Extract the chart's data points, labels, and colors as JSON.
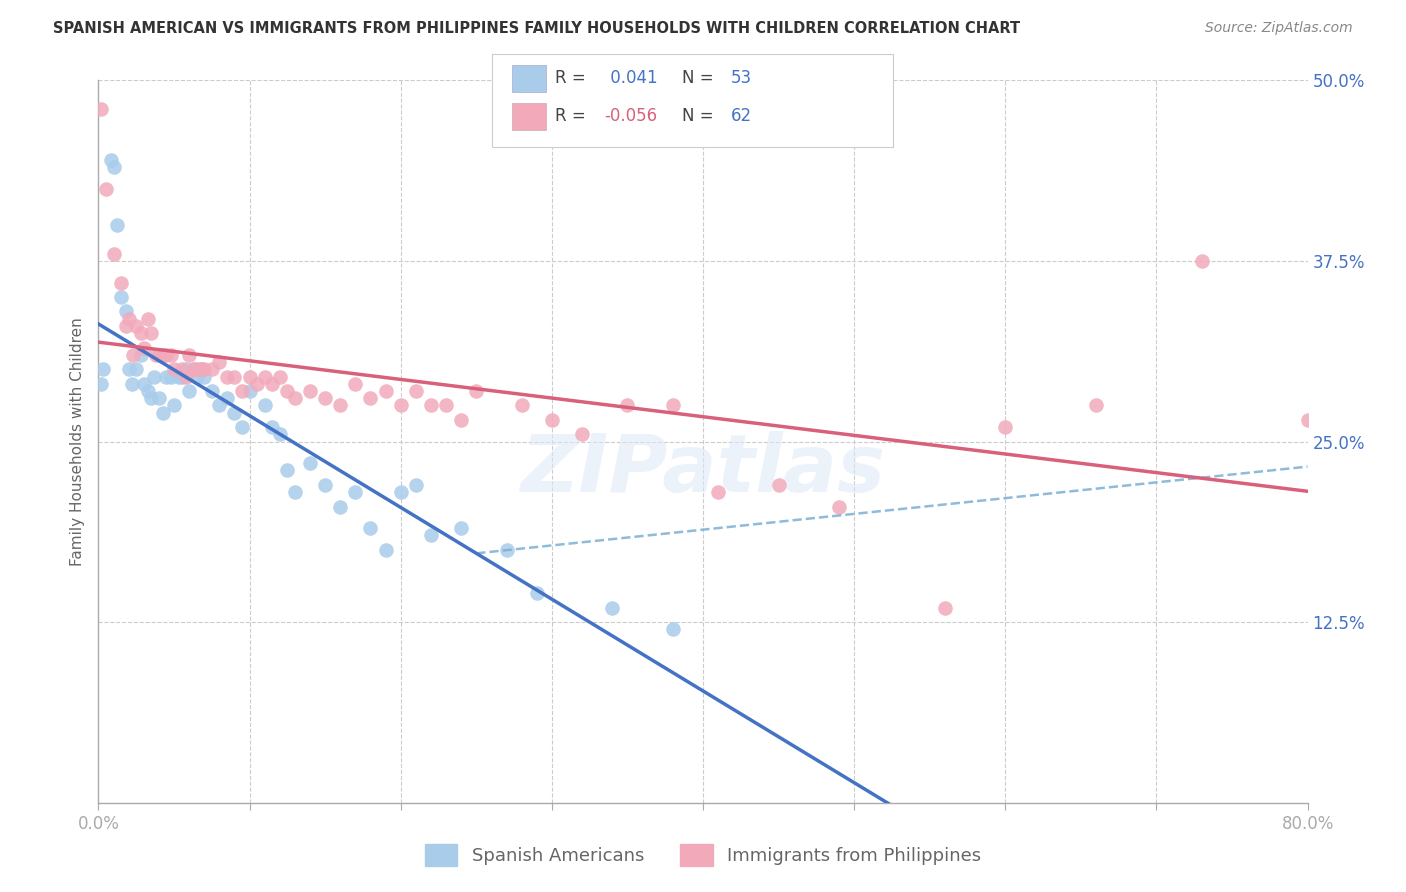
{
  "title": "SPANISH AMERICAN VS IMMIGRANTS FROM PHILIPPINES FAMILY HOUSEHOLDS WITH CHILDREN CORRELATION CHART",
  "source": "Source: ZipAtlas.com",
  "ylabel": "Family Households with Children",
  "xmin": 0.0,
  "xmax": 0.8,
  "ymin": 0.0,
  "ymax": 0.5,
  "blue_color": "#A8CCEA",
  "pink_color": "#F2AABB",
  "blue_line_color": "#4472C4",
  "pink_line_color": "#D9607A",
  "blue_r": 0.041,
  "pink_r": -0.056,
  "blue_n": 53,
  "pink_n": 62,
  "legend_label1": "Spanish Americans",
  "legend_label2": "Immigrants from Philippines",
  "r_color": "#4472C4",
  "r2_color": "#D9607A",
  "n_color": "#4472C4",
  "blue_x": [
    0.002,
    0.003,
    0.008,
    0.01,
    0.012,
    0.015,
    0.018,
    0.02,
    0.022,
    0.025,
    0.028,
    0.03,
    0.033,
    0.035,
    0.037,
    0.04,
    0.043,
    0.045,
    0.048,
    0.05,
    0.053,
    0.055,
    0.058,
    0.06,
    0.063,
    0.065,
    0.068,
    0.07,
    0.075,
    0.08,
    0.085,
    0.09,
    0.095,
    0.1,
    0.11,
    0.115,
    0.12,
    0.125,
    0.13,
    0.14,
    0.15,
    0.16,
    0.17,
    0.18,
    0.19,
    0.2,
    0.21,
    0.22,
    0.24,
    0.27,
    0.29,
    0.34,
    0.38
  ],
  "blue_y": [
    0.29,
    0.3,
    0.445,
    0.44,
    0.4,
    0.35,
    0.34,
    0.3,
    0.29,
    0.3,
    0.31,
    0.29,
    0.285,
    0.28,
    0.295,
    0.28,
    0.27,
    0.295,
    0.295,
    0.275,
    0.295,
    0.295,
    0.3,
    0.285,
    0.3,
    0.295,
    0.3,
    0.295,
    0.285,
    0.275,
    0.28,
    0.27,
    0.26,
    0.285,
    0.275,
    0.26,
    0.255,
    0.23,
    0.215,
    0.235,
    0.22,
    0.205,
    0.215,
    0.19,
    0.175,
    0.215,
    0.22,
    0.185,
    0.19,
    0.175,
    0.145,
    0.135,
    0.12
  ],
  "pink_x": [
    0.002,
    0.005,
    0.01,
    0.015,
    0.018,
    0.02,
    0.023,
    0.025,
    0.028,
    0.03,
    0.033,
    0.035,
    0.038,
    0.04,
    0.043,
    0.045,
    0.048,
    0.05,
    0.055,
    0.058,
    0.06,
    0.063,
    0.065,
    0.068,
    0.07,
    0.075,
    0.08,
    0.085,
    0.09,
    0.095,
    0.1,
    0.105,
    0.11,
    0.115,
    0.12,
    0.125,
    0.13,
    0.14,
    0.15,
    0.16,
    0.17,
    0.18,
    0.19,
    0.2,
    0.21,
    0.22,
    0.23,
    0.24,
    0.25,
    0.28,
    0.3,
    0.32,
    0.35,
    0.38,
    0.41,
    0.45,
    0.49,
    0.56,
    0.6,
    0.66,
    0.73,
    0.8
  ],
  "pink_y": [
    0.48,
    0.425,
    0.38,
    0.36,
    0.33,
    0.335,
    0.31,
    0.33,
    0.325,
    0.315,
    0.335,
    0.325,
    0.31,
    0.31,
    0.31,
    0.31,
    0.31,
    0.3,
    0.3,
    0.295,
    0.31,
    0.3,
    0.3,
    0.3,
    0.3,
    0.3,
    0.305,
    0.295,
    0.295,
    0.285,
    0.295,
    0.29,
    0.295,
    0.29,
    0.295,
    0.285,
    0.28,
    0.285,
    0.28,
    0.275,
    0.29,
    0.28,
    0.285,
    0.275,
    0.285,
    0.275,
    0.275,
    0.265,
    0.285,
    0.275,
    0.265,
    0.255,
    0.275,
    0.275,
    0.215,
    0.22,
    0.205,
    0.135,
    0.26,
    0.275,
    0.375,
    0.265
  ]
}
